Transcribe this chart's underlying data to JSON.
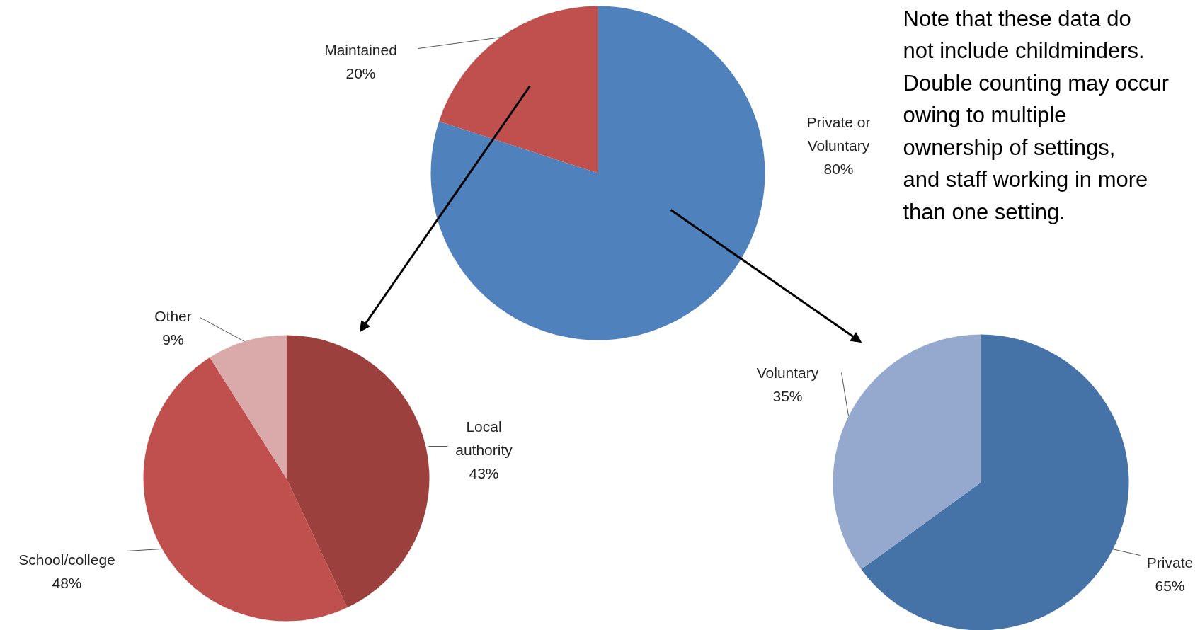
{
  "chart_data": [
    {
      "type": "pie",
      "categories": [
        "Private or Voluntary",
        "Maintained"
      ],
      "values": [
        80,
        20
      ],
      "value_labels": [
        "80%",
        "20%"
      ],
      "colors": [
        "#4f81bd",
        "#c0504d"
      ],
      "annotations": [
        "Note that these data do not include childminders. Double counting may occur owing to multiple ownership of settings, and staff working in more than one setting."
      ]
    },
    {
      "type": "pie",
      "categories": [
        "Local authority",
        "School/college",
        "Other"
      ],
      "values": [
        43,
        48,
        9
      ],
      "value_labels": [
        "43%",
        "48%",
        "9%"
      ],
      "colors": [
        "#9c403d",
        "#c0504d",
        "#d9aaa9"
      ]
    },
    {
      "type": "pie",
      "categories": [
        "Private",
        "Voluntary"
      ],
      "values": [
        65,
        35
      ],
      "value_labels": [
        "65%",
        "35%"
      ],
      "colors": [
        "#4673a7",
        "#95a9cf"
      ]
    }
  ]
}
